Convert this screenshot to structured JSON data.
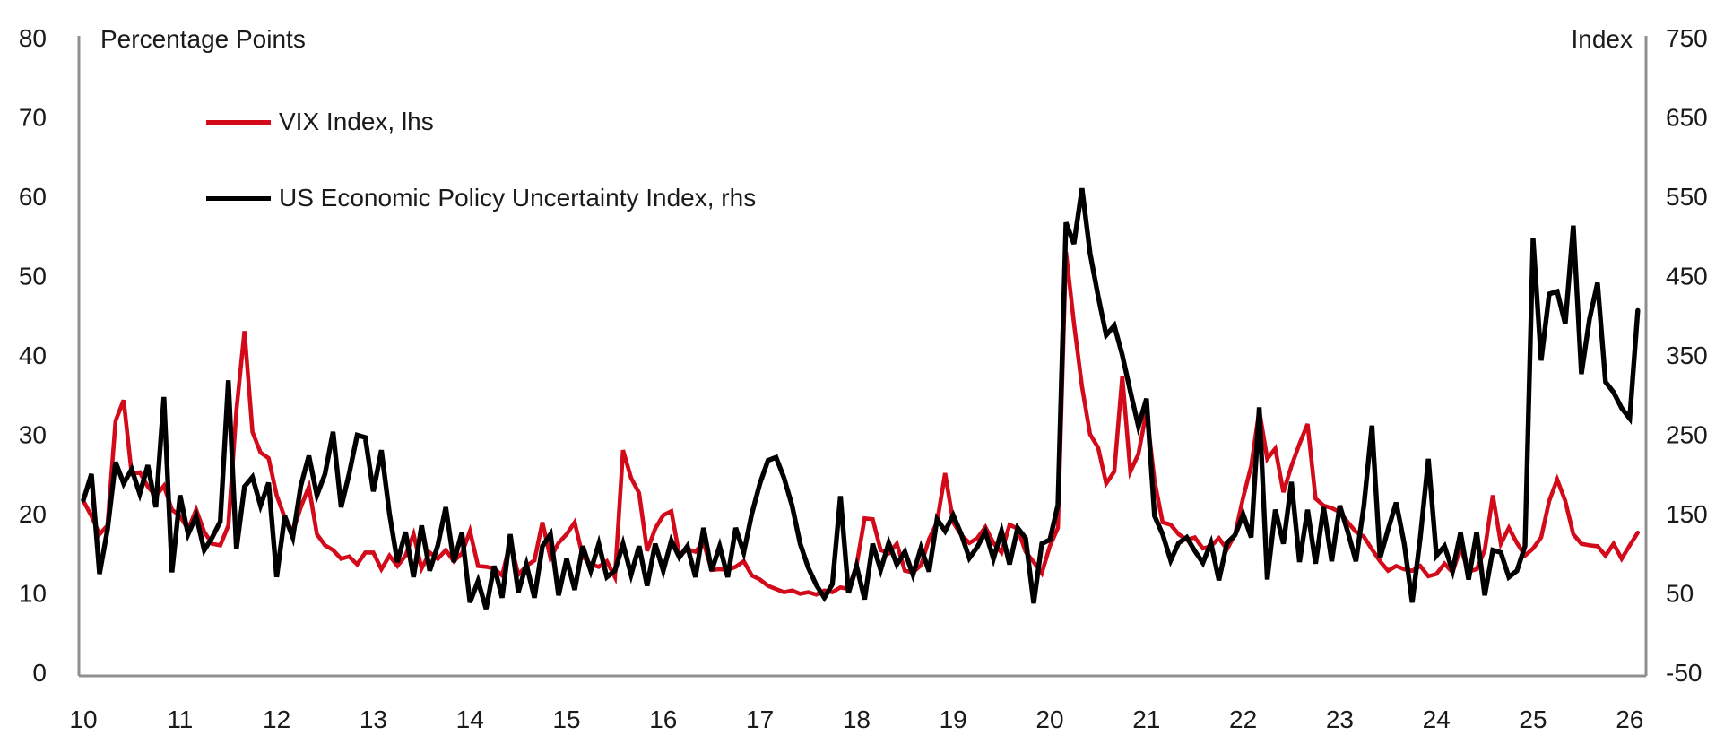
{
  "chart_data": {
    "type": "line",
    "title": "",
    "grid": false,
    "legend_position": "top-left",
    "left_axis": {
      "label": "Percentage Points",
      "min": 0,
      "max": 80,
      "step": 10,
      "ticks": [
        0,
        10,
        20,
        30,
        40,
        50,
        60,
        70,
        80
      ]
    },
    "right_axis": {
      "label": "Index",
      "min": -50,
      "max": 750,
      "step": 100,
      "ticks": [
        -50,
        50,
        150,
        250,
        350,
        450,
        550,
        650,
        750
      ]
    },
    "x_axis": {
      "start_year": 2010,
      "frequency": "monthly",
      "tick_labels": [
        "10",
        "11",
        "12",
        "13",
        "14",
        "15",
        "16",
        "17",
        "18",
        "19",
        "20",
        "21",
        "22",
        "23",
        "24",
        "25",
        "26"
      ]
    },
    "series": [
      {
        "name": "VIX Index, lhs",
        "axis": "left",
        "color": "#d20a19",
        "stroke_width": 4.6,
        "values": [
          21.6,
          19.7,
          17.4,
          18.5,
          31.7,
          34.3,
          25,
          25.2,
          23.4,
          22.2,
          23.5,
          20.5,
          19.7,
          18,
          20.5,
          17.7,
          16.2,
          16,
          18.5,
          33,
          43,
          30.3,
          27.7,
          27,
          22.3,
          19.5,
          17.7,
          20.8,
          23.4,
          17.4,
          16,
          15.4,
          14.3,
          14.6,
          13.6,
          15.1,
          15.1,
          13,
          14.7,
          13.4,
          14.7,
          17.4,
          13.1,
          15.1,
          14.3,
          15.4,
          14,
          15,
          17.8,
          13.4,
          13.3,
          13.1,
          12.2,
          16.4,
          12.3,
          13.4,
          14.1,
          18.9,
          14.4,
          16.3,
          17.4,
          18.9,
          14.6,
          13.6,
          13.3,
          14,
          12,
          28,
          24.5,
          22.6,
          15.3,
          18.1,
          19.8,
          20.3,
          14.7,
          15.5,
          15.2,
          16.4,
          12.9,
          13,
          12.9,
          13.3,
          14,
          12.2,
          11.7,
          10.9,
          10.5,
          10.1,
          10.3,
          9.9,
          10.1,
          9.8,
          10.3,
          10.1,
          10.7,
          10.5,
          13.5,
          19.4,
          19.3,
          15.4,
          15,
          16.2,
          12.8,
          12.6,
          13.5,
          16.8,
          18.9,
          25.1,
          18.9,
          17.3,
          16.3,
          16.9,
          18.3,
          16.3,
          15.1,
          18.6,
          18.1,
          15.2,
          13.9,
          12.5,
          15.9,
          18.2,
          53,
          44,
          36,
          30,
          28.3,
          23.8,
          25.3,
          37.3,
          25.3,
          27.5,
          32.9,
          24.1,
          18.9,
          18.6,
          17.4,
          16.7,
          17,
          15.6,
          15.9,
          16.9,
          15.5,
          17.4,
          22,
          26,
          33,
          26.9,
          28.2,
          22.7,
          26,
          28.8,
          31.3,
          21.9,
          21,
          20.7,
          20.2,
          18.9,
          17.7,
          17.1,
          15.5,
          14,
          12.8,
          13.4,
          13,
          12.8,
          13.4,
          12.1,
          12.4,
          13.7,
          12.6,
          15.7,
          12.7,
          13,
          15.4,
          22.3,
          16.2,
          18.2,
          16.3,
          14.7,
          15.6,
          17,
          21.6,
          24.3,
          21.6,
          17.4,
          16.2,
          16,
          15.9,
          14.7,
          16.2,
          14.3,
          16,
          17.6
        ]
      },
      {
        "name": "US Economic Policy Uncertainty Index, rhs",
        "axis": "right",
        "color": "#000000",
        "stroke_width": 5.4,
        "values": [
          167,
          200,
          74,
          130,
          215,
          188,
          206,
          175,
          211,
          158,
          297,
          76,
          173,
          124,
          147,
          104,
          120,
          140,
          318,
          105,
          184,
          196,
          160,
          189,
          70,
          147,
          120,
          185,
          223,
          173,
          200,
          253,
          158,
          200,
          249,
          246,
          178,
          230,
          150,
          89,
          127,
          70,
          135,
          78,
          110,
          158,
          89,
          126,
          38,
          65,
          30,
          84,
          44,
          124,
          51,
          86,
          44,
          109,
          124,
          47,
          93,
          54,
          109,
          78,
          112,
          70,
          78,
          112,
          73,
          109,
          59,
          112,
          78,
          116,
          95,
          109,
          70,
          132,
          78,
          109,
          70,
          132,
          101,
          150,
          188,
          217,
          221,
          195,
          160,
          112,
          82,
          60,
          44,
          61,
          172,
          50,
          84,
          42,
          112,
          79,
          113,
          86,
          102,
          73,
          107,
          77,
          143,
          128,
          148,
          124,
          94,
          108,
          127,
          93,
          128,
          86,
          132,
          119,
          37,
          112,
          117,
          161,
          517,
          490,
          560,
          478,
          424,
          375,
          387,
          350,
          304,
          260,
          295,
          147,
          124,
          91,
          113,
          120,
          103,
          88,
          113,
          66,
          113,
          123,
          149,
          120,
          284,
          67,
          155,
          112,
          190,
          89,
          155,
          87,
          158,
          90,
          160,
          127,
          90,
          160,
          261,
          94,
          130,
          164,
          112,
          38,
          120,
          219,
          97,
          109,
          78,
          126,
          67,
          127,
          47,
          104,
          101,
          70,
          78,
          109,
          497,
          343,
          427,
          430,
          389,
          513,
          326,
          395,
          441,
          316,
          303,
          283,
          270,
          406
        ]
      }
    ]
  },
  "colors": {
    "axis_line": "#8f8f8f",
    "text": "#1a1a1a",
    "background": "#ffffff",
    "vix_red": "#d20a19",
    "epu_black": "#000000"
  }
}
